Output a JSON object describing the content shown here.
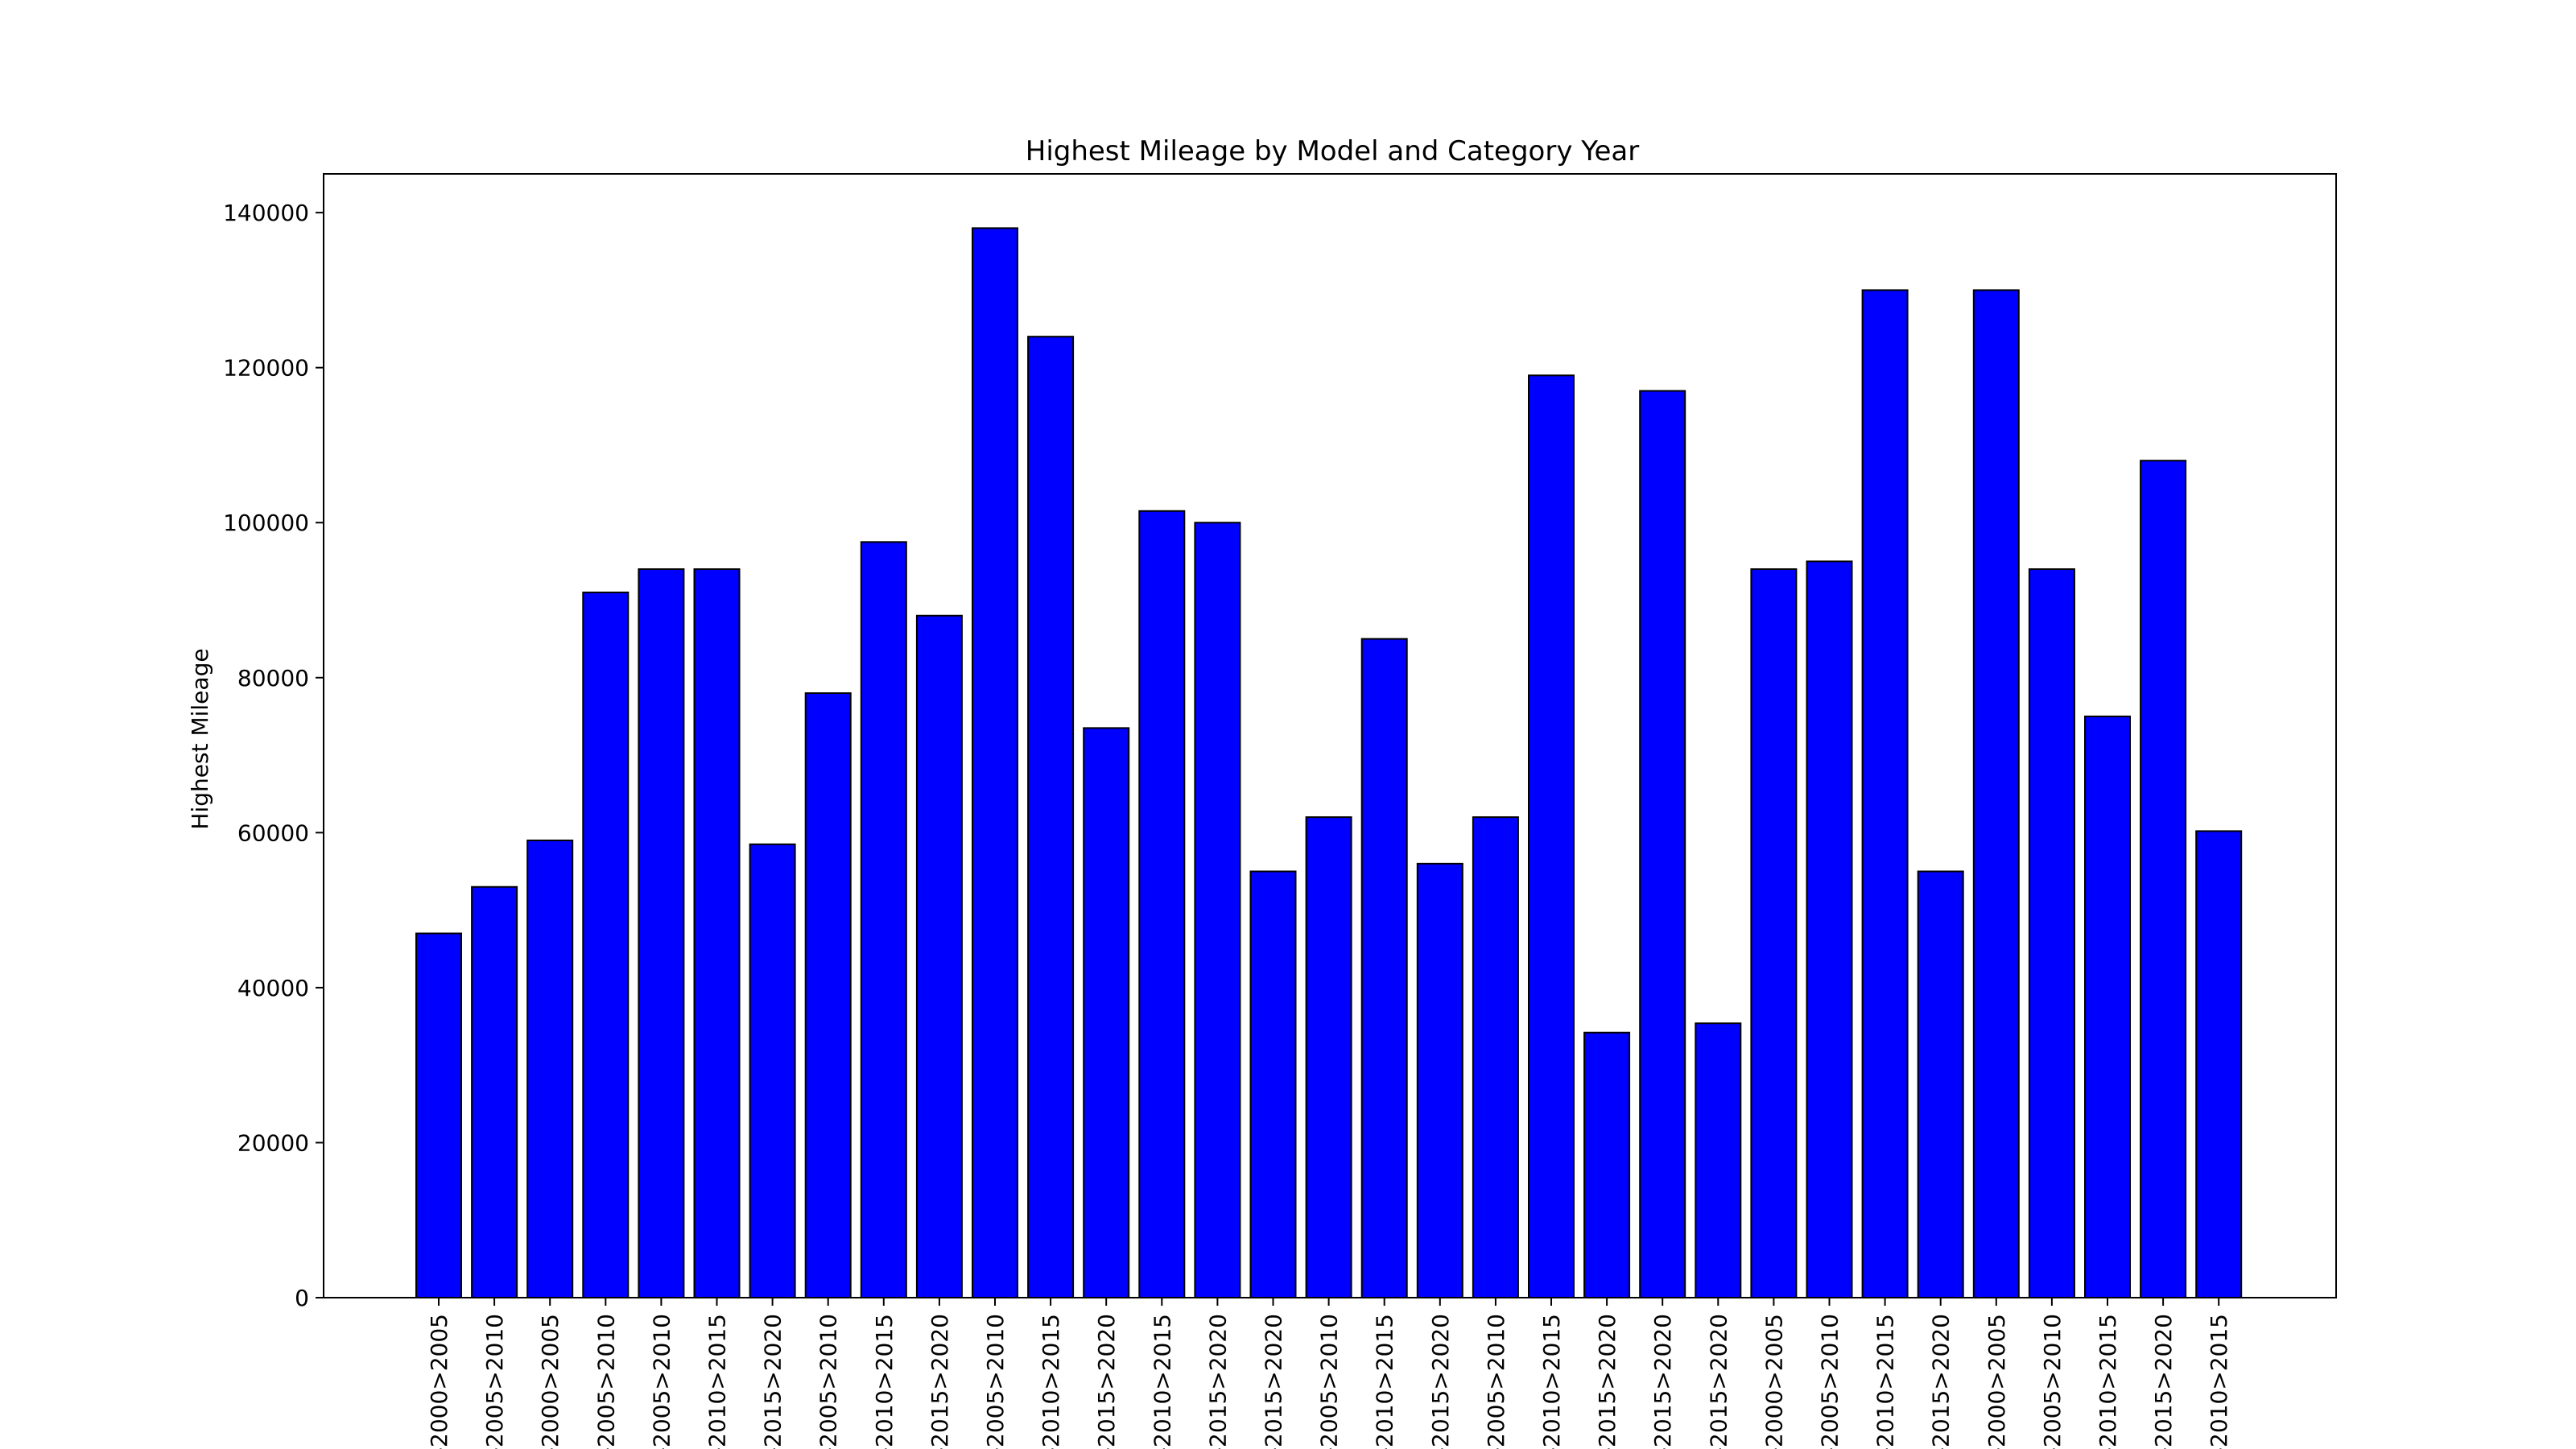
{
  "chart_data": {
    "type": "bar",
    "title": "Highest Mileage by Model and Category Year",
    "xlabel": "",
    "ylabel": "Highest Mileage",
    "ylim": [
      0,
      145000
    ],
    "yticks": [
      0,
      20000,
      40000,
      60000,
      80000,
      100000,
      120000,
      140000
    ],
    "grid": false,
    "legend": "none",
    "categories": [
      "-2000>2005",
      "-2005>2010",
      "-2000>2005",
      "-2005>2010",
      "-2005>2010",
      "-2010>2015",
      "-2015>2020",
      "-2005>2010",
      "-2010>2015",
      "-2015>2020",
      "-2005>2010",
      "-2010>2015",
      "-2015>2020",
      "-2010>2015",
      "-2015>2020",
      "-2015>2020",
      "-2005>2010",
      "-2010>2015",
      "-2015>2020",
      "-2005>2010",
      "-2010>2015",
      "-2015>2020",
      "-2015>2020",
      "-2015>2020",
      "-2000>2005",
      "-2005>2010",
      "-2010>2015",
      "-2015>2020",
      "-2000>2005",
      "-2005>2010",
      "-2010>2015",
      "-2015>2020",
      "-2010>2015"
    ],
    "values": [
      47000,
      53000,
      59000,
      91000,
      94000,
      94000,
      58500,
      78000,
      97500,
      88000,
      138000,
      124000,
      73500,
      101500,
      100000,
      55000,
      62000,
      85000,
      56000,
      62000,
      119000,
      34200,
      117000,
      35400,
      94000,
      95000,
      130000,
      55000,
      130000,
      94000,
      75000,
      108000,
      60200
    ],
    "colors": {
      "bar_fill": "#0000ff",
      "bar_edge": "#000000",
      "axes": "#000000",
      "background": "#ffffff"
    }
  }
}
